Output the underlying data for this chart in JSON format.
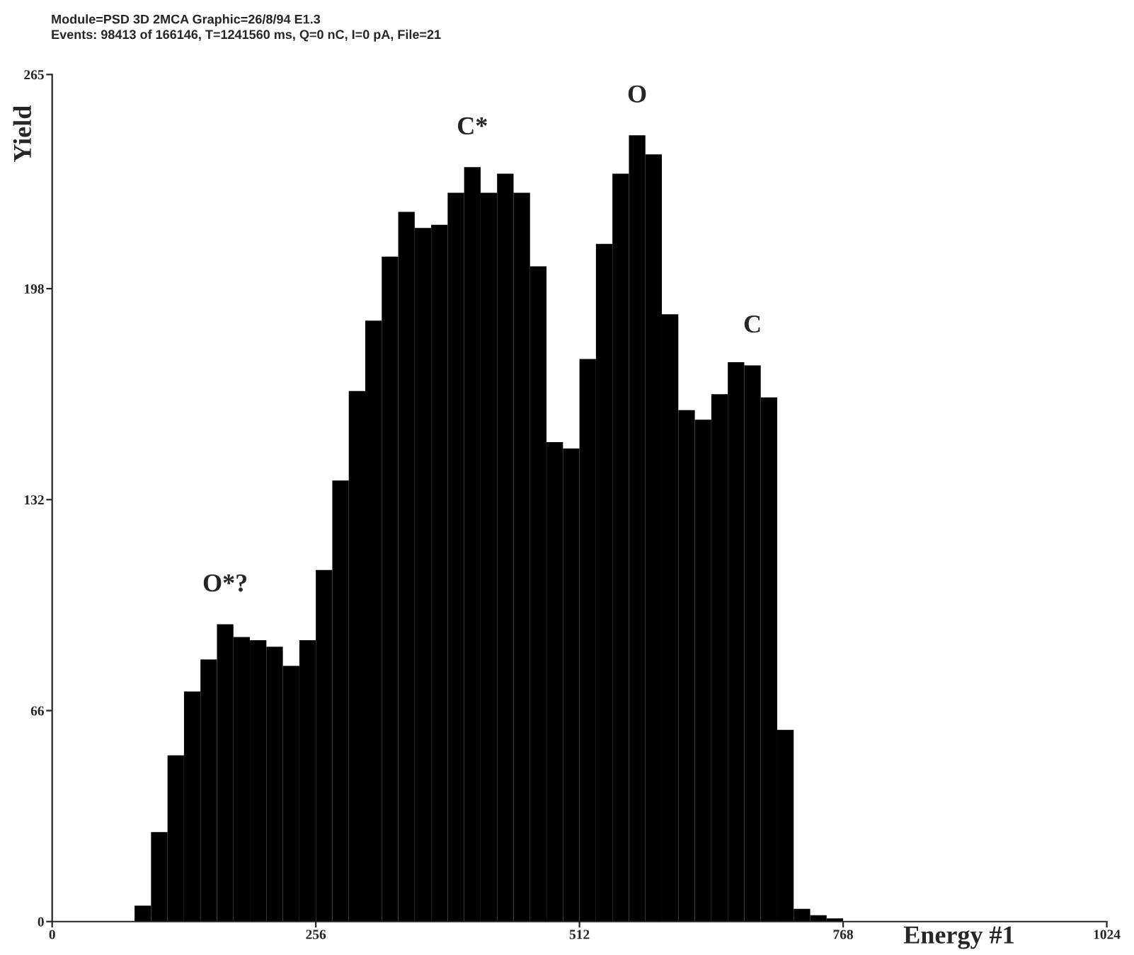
{
  "chart_data": {
    "type": "histogram",
    "xlabel": "Energy #1",
    "ylabel": "Yield",
    "bins": [
      64,
      80,
      96,
      112,
      128,
      144,
      160,
      176,
      192,
      208,
      224,
      240,
      256,
      272,
      288,
      304,
      320,
      336,
      352,
      368,
      384,
      400,
      416,
      432,
      448,
      464,
      480,
      496,
      512,
      528,
      544,
      560,
      576,
      592,
      608,
      624,
      640,
      656,
      672,
      688,
      704,
      720,
      736,
      752,
      768
    ],
    "values": [
      0,
      5,
      28,
      52,
      72,
      82,
      93,
      89,
      88,
      86,
      80,
      88,
      110,
      138,
      166,
      188,
      208,
      222,
      217,
      218,
      228,
      236,
      228,
      234,
      228,
      205,
      150,
      148,
      176,
      212,
      234,
      246,
      240,
      190,
      160,
      157,
      165,
      175,
      174,
      164,
      60,
      4,
      2,
      1
    ],
    "color": "#000000",
    "xlim": [
      0,
      1024
    ],
    "ylim": [
      0,
      265
    ],
    "xticks": [
      0,
      256,
      512,
      768,
      1024
    ],
    "yticks": [
      0,
      66,
      132,
      198,
      265
    ],
    "grid": false,
    "legend": false,
    "annotations": [
      "Module=PSD 3D 2MCA Graphic=26/8/94 E1.3",
      "Events: 98413 of 166146, T=1241560 ms, Q=0 nC, I=0 pA, File=21",
      {
        "text": "O*?",
        "x": 168,
        "y": 93
      },
      {
        "text": "C*",
        "x": 408,
        "y": 236
      },
      {
        "text": "O",
        "x": 568,
        "y": 246
      },
      {
        "text": "C",
        "x": 680,
        "y": 174
      }
    ]
  }
}
